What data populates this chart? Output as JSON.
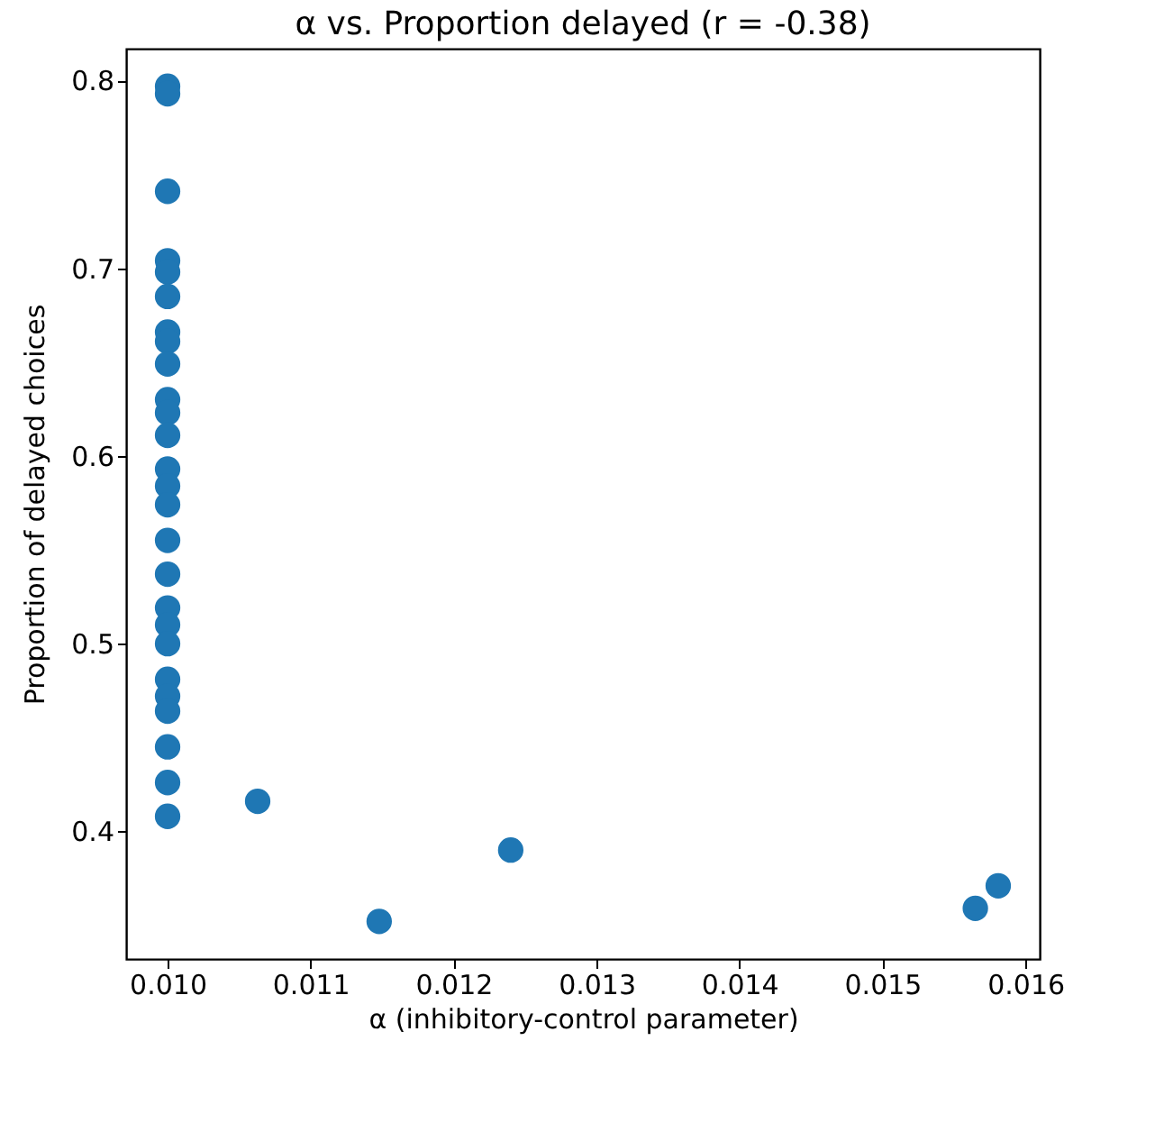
{
  "chart_data": {
    "type": "scatter",
    "title": "α vs. Proportion delayed (r = -0.38)",
    "xlabel": "α (inhibitory-control parameter)",
    "ylabel": "Proportion of delayed choices",
    "x": [
      0.01,
      0.01,
      0.01,
      0.01,
      0.01,
      0.01,
      0.01,
      0.01,
      0.01,
      0.01,
      0.01,
      0.01,
      0.01,
      0.01,
      0.01,
      0.01,
      0.01,
      0.01,
      0.01,
      0.01,
      0.01,
      0.01,
      0.01,
      0.01,
      0.01,
      0.01,
      0.01063,
      0.01148,
      0.0124,
      0.01565,
      0.01581
    ],
    "series": [
      {
        "color": "#1f77b4",
        "values": [
          0.797,
          0.793,
          0.741,
          0.704,
          0.698,
          0.685,
          0.666,
          0.661,
          0.649,
          0.63,
          0.623,
          0.611,
          0.593,
          0.584,
          0.574,
          0.555,
          0.537,
          0.519,
          0.51,
          0.5,
          0.481,
          0.472,
          0.464,
          0.445,
          0.426,
          0.408,
          0.416,
          0.352,
          0.39,
          0.359,
          0.371
        ]
      }
    ],
    "xlim": [
      0.00971,
      0.0161
    ],
    "ylim": [
      0.332,
      0.817
    ],
    "xticks": [
      {
        "value": 0.01,
        "label": "0.010"
      },
      0.011,
      0.012,
      0.013,
      0.014,
      0.015,
      0.016
    ],
    "yticks": [
      0.4,
      0.5,
      0.6,
      0.7,
      0.8
    ],
    "grid": false,
    "marker": "circle"
  }
}
